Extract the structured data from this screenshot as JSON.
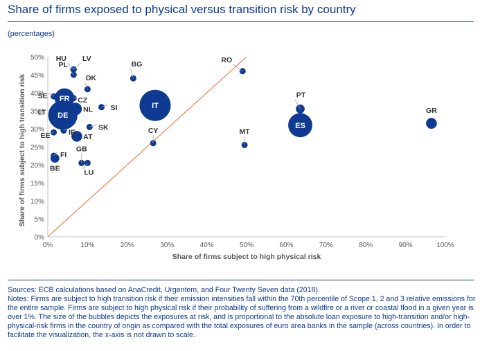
{
  "header": {
    "title": "Share of firms exposed to physical versus transition risk by country",
    "subtitle": "(percentages)"
  },
  "footer": {
    "sources": "Sources: ECB calculations based on AnaCredit, Urgentem, and Four Twenty Seven data (2018).",
    "notes": "Notes: Firms are subject to high transition risk if their emission intensities fall within the 70th percentile of Scope 1, 2 and 3 relative emissions for the entire sample. Firms are subject to high physical risk if their probability of suffering from a wildfire or a river or coastal flood in a given year is over 1%. The size of the bubbles depicts the exposures at risk, and is proportional to the absolute loan exposure to high-transition and/or high-physical-risk firms in the country of origin as compared with the total exposures of euro area banks in the sample (across countries). In order to facilitate the visualization, the x-axis is not drawn to scale."
  },
  "colors": {
    "bubble": "#0f3a92",
    "diagonal": "#ef8a5a",
    "axis_text": "#555555",
    "title": "#0b3a8f"
  },
  "chart_data": {
    "type": "scatter",
    "xlabel": "Share of firms subject to high physical risk",
    "ylabel": "Share of firms subject to high transition risk",
    "xlim": [
      0,
      100
    ],
    "ylim": [
      0,
      50
    ],
    "x_ticks": [
      "0%",
      "10%",
      "20%",
      "30%",
      "40%",
      "50%",
      "60%",
      "70%",
      "80%",
      "90%",
      "100%"
    ],
    "y_ticks": [
      "0%",
      "5%",
      "10%",
      "15%",
      "20%",
      "25%",
      "30%",
      "35%",
      "40%",
      "45%",
      "50%"
    ],
    "reference_line": {
      "from": [
        0,
        0
      ],
      "to": [
        50,
        50
      ]
    },
    "points": [
      {
        "label": "HU",
        "x": 6.5,
        "y": 46.5,
        "size": 1
      },
      {
        "label": "LV",
        "x": 6.5,
        "y": 46.5,
        "size": 1
      },
      {
        "label": "BG",
        "x": 21.5,
        "y": 44,
        "size": 1
      },
      {
        "label": "RO",
        "x": 49,
        "y": 46,
        "size": 1
      },
      {
        "label": "PL",
        "x": 6.5,
        "y": 45,
        "size": 1
      },
      {
        "label": "DK",
        "x": 10,
        "y": 41,
        "size": 1
      },
      {
        "label": "PT",
        "x": 63.5,
        "y": 35.5,
        "size": 2
      },
      {
        "label": "SE",
        "x": 1.5,
        "y": 39,
        "size": 1
      },
      {
        "label": "FR",
        "x": 4.2,
        "y": 38.5,
        "size": 10
      },
      {
        "label": "CZ",
        "x": 6.5,
        "y": 38.5,
        "size": 1
      },
      {
        "label": "SI",
        "x": 13.5,
        "y": 36,
        "size": 1
      },
      {
        "label": "GR",
        "x": 96.5,
        "y": 31.5,
        "size": 3
      },
      {
        "label": "NL",
        "x": 7,
        "y": 35.5,
        "size": 4
      },
      {
        "label": "IT",
        "x": 27,
        "y": 36.5,
        "size": 25
      },
      {
        "label": "LT",
        "x": 1.5,
        "y": 34.5,
        "size": 1
      },
      {
        "label": "DE",
        "x": 3.8,
        "y": 33.8,
        "size": 22
      },
      {
        "label": "MT",
        "x": 49.5,
        "y": 25.5,
        "size": 1
      },
      {
        "label": "ES",
        "x": 63.5,
        "y": 31,
        "size": 15
      },
      {
        "label": "SK",
        "x": 10.5,
        "y": 30.5,
        "size": 1
      },
      {
        "label": "CY",
        "x": 26.5,
        "y": 26,
        "size": 1
      },
      {
        "label": "AT",
        "x": 7.3,
        "y": 27.9,
        "size": 3
      },
      {
        "label": "EE",
        "x": 1.5,
        "y": 29,
        "size": 1
      },
      {
        "label": "IE",
        "x": 4,
        "y": 29.5,
        "size": 1
      },
      {
        "label": "FI",
        "x": 1.5,
        "y": 22.5,
        "size": 1
      },
      {
        "label": "GB",
        "x": 8.5,
        "y": 20.5,
        "size": 1
      },
      {
        "label": "BE",
        "x": 1.8,
        "y": 21.8,
        "size": 2
      },
      {
        "label": "LU",
        "x": 10,
        "y": 20.5,
        "size": 1
      }
    ]
  }
}
